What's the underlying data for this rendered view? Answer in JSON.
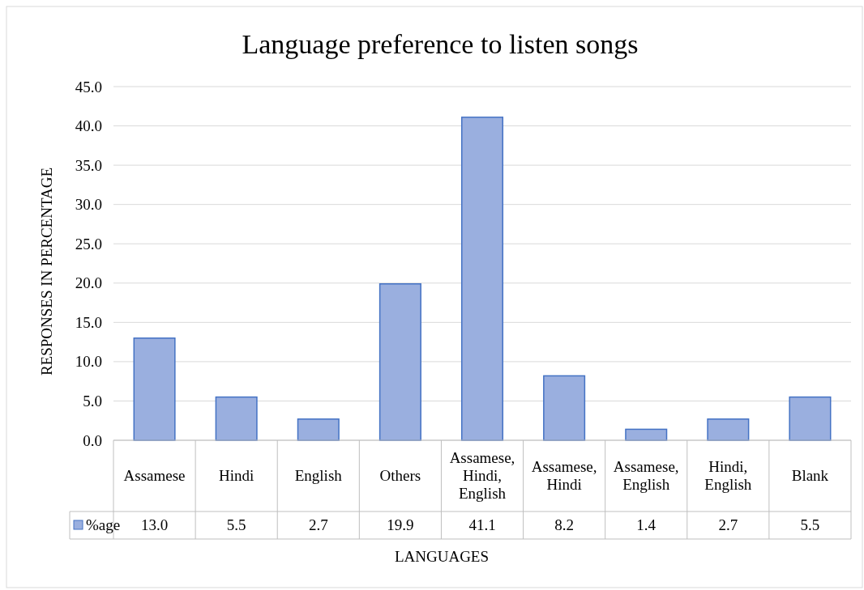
{
  "chart_data": {
    "type": "bar",
    "title": "Language preference to listen songs",
    "xlabel": "LANGUAGES",
    "ylabel": "RESPONSES IN PERCENTAGE",
    "categories": [
      "Assamese",
      "Hindi",
      "English",
      "Others",
      "Assamese,Hindi,English",
      "Assamese,Hindi",
      "Assamese,English",
      "Hindi,English",
      "Blank"
    ],
    "series": [
      {
        "name": "%age",
        "color": "#9aafdf",
        "values": [
          13.0,
          5.5,
          2.7,
          19.9,
          41.1,
          8.2,
          1.4,
          2.7,
          5.5
        ],
        "value_labels": [
          "13.0",
          "5.5",
          "2.7",
          "19.9",
          "41.1",
          "8.2",
          "1.4",
          "2.7",
          "5.5"
        ]
      }
    ],
    "ylim": [
      0,
      45
    ],
    "yticks": [
      {
        "value": 0,
        "label": "0.0"
      },
      {
        "value": 5,
        "label": "5.0"
      },
      {
        "value": 10,
        "label": "10.0"
      },
      {
        "value": 15,
        "label": "15.0"
      },
      {
        "value": 20,
        "label": "20.0"
      },
      {
        "value": 25,
        "label": "25.0"
      },
      {
        "value": 30,
        "label": "30.0"
      },
      {
        "value": 35,
        "label": "35.0"
      },
      {
        "value": 40,
        "label": "40.0"
      },
      {
        "value": 45,
        "label": "45.0"
      }
    ],
    "grid": "y",
    "legend": "bottom"
  }
}
